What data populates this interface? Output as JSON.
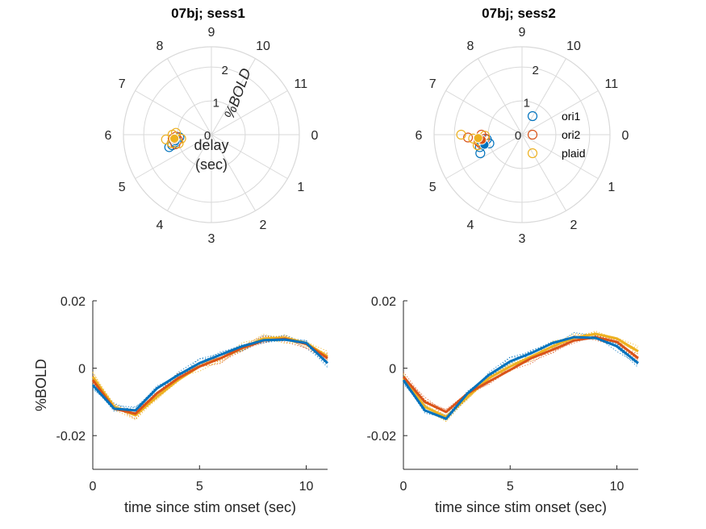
{
  "figure": {
    "colors": {
      "ori1": "#0072BD",
      "ori2": "#D95319",
      "plaid": "#EDB120",
      "grid": "#d9d9d9",
      "axis": "#262626"
    },
    "polar_titles": [
      "07bj; sess1",
      "07bj; sess2"
    ],
    "polar_angle_labels": [
      "0",
      "1",
      "2",
      "3",
      "4",
      "5",
      "6",
      "7",
      "8",
      "9",
      "10",
      "11"
    ],
    "polar_radius_labels": [
      "0",
      "1",
      "2"
    ],
    "polar_r_axis_label": "%BOLD",
    "polar_center_label_line1": "delay",
    "polar_center_label_line2": "(sec)",
    "legend": [
      "ori1",
      "ori2",
      "plaid"
    ],
    "line_xlabel": "time since stim onset (sec)",
    "line_ylabel": "%BOLD",
    "line_xticks": [
      "0",
      "5",
      "10"
    ],
    "line_yticks": [
      "0.02",
      "0",
      "-0.02"
    ]
  },
  "chart_data": [
    {
      "type": "scatter",
      "coordinate_system": "polar",
      "title": "07bj; sess1",
      "angle_unit": "delay (sec), 12 = full circle",
      "radius_label": "%BOLD",
      "rlim": [
        0,
        2.6
      ],
      "legend_placement": "none",
      "series": [
        {
          "name": "ori1",
          "angle": [
            5.7,
            5.45,
            5.6,
            5.85,
            5.5
          ],
          "radius": [
            1.05,
            1.3,
            1.1,
            0.95,
            1.2
          ],
          "mean": {
            "angle": 5.65,
            "radius": 1.08
          }
        },
        {
          "name": "ori2",
          "angle": [
            5.9,
            5.6,
            5.7,
            5.8,
            5.5
          ],
          "radius": [
            1.05,
            1.2,
            1.0,
            1.15,
            1.1
          ],
          "mean": {
            "angle": 5.75,
            "radius": 1.1
          }
        },
        {
          "name": "plaid",
          "angle": [
            5.8,
            6.0,
            5.6,
            5.75,
            6.1,
            5.5
          ],
          "radius": [
            1.35,
            1.15,
            1.2,
            0.9,
            1.05,
            1.0
          ],
          "mean": {
            "angle": 5.8,
            "radius": 1.1
          }
        }
      ]
    },
    {
      "type": "scatter",
      "coordinate_system": "polar",
      "title": "07bj; sess2",
      "angle_unit": "delay (sec), 12 = full circle",
      "rlim": [
        0,
        2.6
      ],
      "legend_placement": "east",
      "series": [
        {
          "name": "ori1",
          "angle": [
            5.45,
            5.6,
            5.75,
            5.2,
            5.5
          ],
          "radius": [
            1.3,
            1.2,
            1.05,
            1.35,
            1.0
          ],
          "mean": {
            "angle": 5.5,
            "radius": 1.15
          }
        },
        {
          "name": "ori2",
          "angle": [
            5.9,
            6.0,
            5.7,
            5.8,
            5.6
          ],
          "radius": [
            1.6,
            1.2,
            1.3,
            1.1,
            1.25
          ],
          "mean": {
            "angle": 5.75,
            "radius": 1.2
          }
        },
        {
          "name": "plaid",
          "angle": [
            6.0,
            5.85,
            5.7,
            5.55,
            5.95
          ],
          "radius": [
            1.8,
            1.45,
            1.25,
            1.35,
            1.1
          ],
          "mean": {
            "angle": 5.85,
            "radius": 1.3
          }
        }
      ]
    },
    {
      "type": "line",
      "title": "",
      "xlabel": "time since stim onset (sec)",
      "ylabel": "%BOLD",
      "xlim": [
        0,
        11
      ],
      "ylim": [
        -0.03,
        0.02
      ],
      "x": [
        0,
        1,
        2,
        3,
        4,
        5,
        6,
        7,
        8,
        9,
        10,
        11
      ],
      "series": [
        {
          "name": "ori1",
          "values": [
            -0.005,
            -0.012,
            -0.0125,
            -0.006,
            -0.002,
            0.0015,
            0.004,
            0.0065,
            0.0083,
            0.0085,
            0.0075,
            0.0015
          ]
        },
        {
          "name": "ori2",
          "values": [
            -0.0035,
            -0.012,
            -0.0135,
            -0.0075,
            -0.003,
            0.0005,
            0.003,
            0.006,
            0.0082,
            0.0087,
            0.0072,
            0.003
          ]
        },
        {
          "name": "plaid",
          "values": [
            -0.0025,
            -0.0115,
            -0.014,
            -0.0085,
            -0.0035,
            0.0005,
            0.003,
            0.006,
            0.0088,
            0.009,
            0.0075,
            0.0035
          ]
        }
      ],
      "individual_traces": "dotted, per-run"
    },
    {
      "type": "line",
      "title": "",
      "xlabel": "time since stim onset (sec)",
      "ylabel": "",
      "xlim": [
        0,
        11
      ],
      "ylim": [
        -0.03,
        0.02
      ],
      "x": [
        0,
        1,
        2,
        3,
        4,
        5,
        6,
        7,
        8,
        9,
        10,
        11
      ],
      "series": [
        {
          "name": "ori1",
          "values": [
            -0.0035,
            -0.0125,
            -0.015,
            -0.0075,
            -0.002,
            0.002,
            0.0045,
            0.0075,
            0.0092,
            0.009,
            0.0065,
            0.0015
          ]
        },
        {
          "name": "ori2",
          "values": [
            -0.0025,
            -0.01,
            -0.013,
            -0.0075,
            -0.004,
            -0.0005,
            0.003,
            0.0055,
            0.0082,
            0.0092,
            0.0078,
            0.003
          ]
        },
        {
          "name": "plaid",
          "values": [
            -0.003,
            -0.0115,
            -0.0145,
            -0.0085,
            -0.003,
            0.0005,
            0.0035,
            0.0065,
            0.009,
            0.0102,
            0.0088,
            0.005
          ]
        }
      ],
      "individual_traces": "dotted, per-run"
    }
  ]
}
